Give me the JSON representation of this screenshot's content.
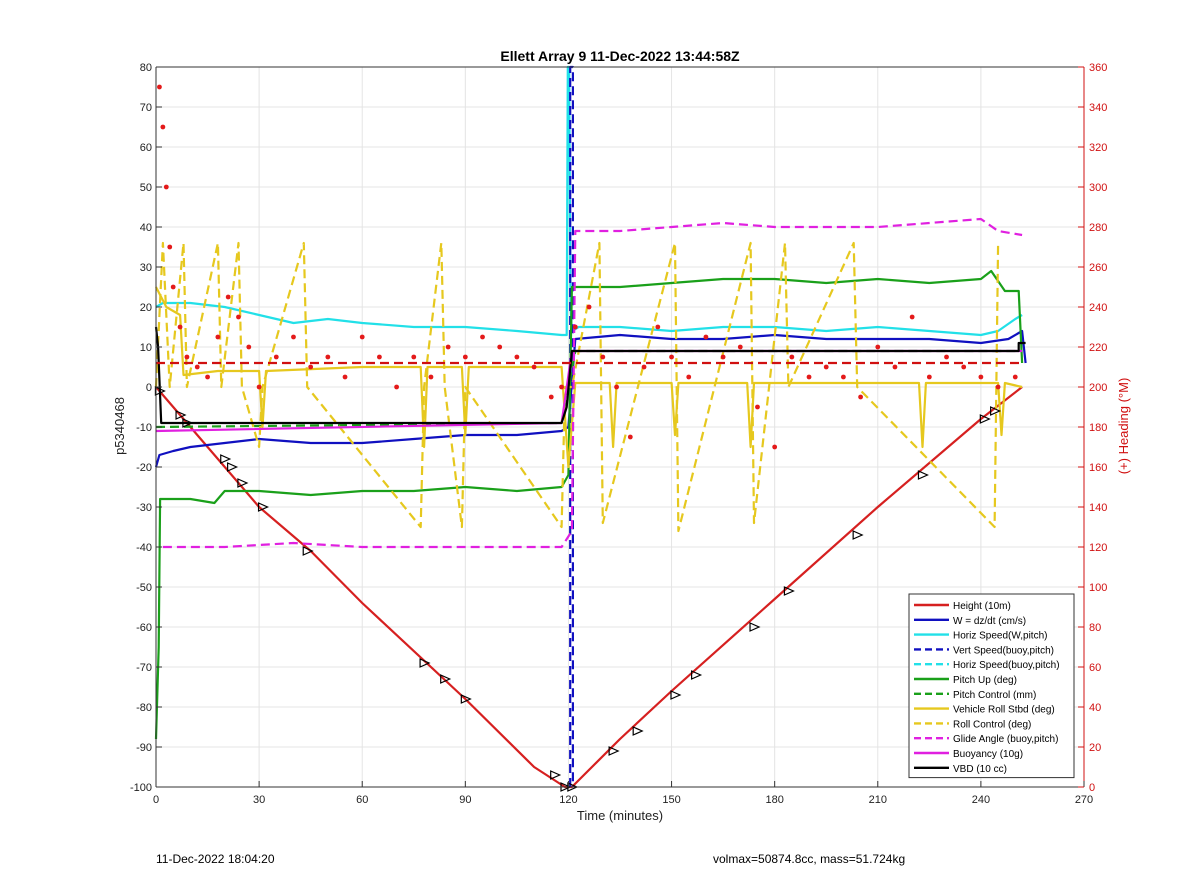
{
  "chart_data": {
    "type": "line",
    "title": "Ellett Array 9 11-Dec-2022 13:44:58Z",
    "xlabel": "Time (minutes)",
    "ylabel": "p5340468",
    "y2label": "(+) Heading (°M)",
    "xlim": [
      0,
      270
    ],
    "ylim": [
      -100,
      80
    ],
    "y2lim": [
      0,
      360
    ],
    "xticks": [
      0,
      30,
      60,
      90,
      120,
      150,
      180,
      210,
      240,
      270
    ],
    "yticks": [
      -100,
      -90,
      -80,
      -70,
      -60,
      -50,
      -40,
      -30,
      -20,
      -10,
      0,
      10,
      20,
      30,
      40,
      50,
      60,
      70,
      80
    ],
    "y2ticks": [
      0,
      20,
      40,
      60,
      80,
      100,
      120,
      140,
      160,
      180,
      200,
      220,
      240,
      260,
      280,
      300,
      320,
      340,
      360
    ],
    "grid": true,
    "legend_position": "bottom-right",
    "legend": [
      {
        "label": "Height (10m)",
        "color": "#d62020",
        "dash": false
      },
      {
        "label": "W = dz/dt (cm/s)",
        "color": "#1010c0",
        "dash": false
      },
      {
        "label": "Horiz Speed(W,pitch)",
        "color": "#22e0e8",
        "dash": false
      },
      {
        "label": "Vert Speed(buoy,pitch)",
        "color": "#1010c0",
        "dash": true
      },
      {
        "label": "Horiz Speed(buoy,pitch)",
        "color": "#22e0e8",
        "dash": true
      },
      {
        "label": "Pitch Up (deg)",
        "color": "#1aa01a",
        "dash": false
      },
      {
        "label": "Pitch Control (mm)",
        "color": "#1aa01a",
        "dash": true
      },
      {
        "label": "Vehicle Roll Stbd (deg)",
        "color": "#e6c81e",
        "dash": false
      },
      {
        "label": "Roll Control (deg)",
        "color": "#e6c81e",
        "dash": true
      },
      {
        "label": "Glide Angle (buoy,pitch)",
        "color": "#e020e0",
        "dash": true
      },
      {
        "label": "Buoyancy (10g)",
        "color": "#e020e0",
        "dash": false
      },
      {
        "label": "VBD (10 cc)",
        "color": "#000000",
        "dash": false
      }
    ],
    "series": [
      {
        "name": "Height (10m)",
        "color": "#d62020",
        "axis": "left",
        "dash": false,
        "x": [
          0,
          5,
          10,
          30,
          45,
          60,
          90,
          110,
          119,
          121,
          135,
          150,
          180,
          210,
          240,
          252
        ],
        "y": [
          0,
          -5,
          -10,
          -30,
          -41,
          -54,
          -78,
          -95,
          -100,
          -100,
          -88,
          -76,
          -53,
          -30,
          -8,
          0
        ]
      },
      {
        "name": "W = dz/dt (cm/s)",
        "color": "#1010c0",
        "axis": "left",
        "dash": false,
        "x": [
          0,
          1,
          5,
          10,
          20,
          30,
          45,
          60,
          75,
          90,
          105,
          118,
          120,
          122,
          135,
          150,
          165,
          180,
          195,
          210,
          225,
          240,
          248,
          252,
          253
        ],
        "y": [
          -20,
          -17,
          -16,
          -15,
          -14,
          -13,
          -14,
          -14,
          -13,
          -12,
          -12,
          -11,
          -10,
          12,
          13,
          12,
          12,
          13,
          12,
          12,
          12,
          11,
          12,
          14,
          6
        ]
      },
      {
        "name": "Horiz Speed(W,pitch)",
        "color": "#22e0e8",
        "axis": "left",
        "dash": false,
        "x": [
          0,
          2,
          10,
          20,
          30,
          40,
          50,
          60,
          75,
          90,
          105,
          118,
          119.5,
          119.8,
          120.2,
          120.6,
          121,
          123,
          135,
          150,
          165,
          180,
          195,
          210,
          225,
          240,
          245,
          250,
          252
        ],
        "y": [
          20,
          21,
          21,
          20,
          18,
          16,
          17,
          16,
          15,
          15,
          14,
          13,
          13,
          80,
          80,
          20,
          14,
          15,
          15,
          14,
          15,
          15,
          14,
          15,
          14,
          13,
          14,
          17,
          18
        ]
      },
      {
        "name": "Vert Speed(buoy,pitch)",
        "color": "#1010c0",
        "axis": "left",
        "dash": true,
        "x": [
          120.5,
          120.5,
          121.3,
          121.3
        ],
        "y": [
          -100,
          80,
          80,
          -100
        ]
      },
      {
        "name": "Pitch Up (deg)",
        "color": "#1aa01a",
        "axis": "left",
        "dash": false,
        "x": [
          0,
          0.8,
          1.2,
          2,
          10,
          17,
          20,
          30,
          45,
          60,
          75,
          90,
          105,
          118,
          120,
          121,
          123,
          135,
          150,
          165,
          180,
          195,
          210,
          225,
          240,
          243,
          247,
          251,
          252
        ],
        "y": [
          -88,
          -65,
          -28,
          -28,
          -28,
          -29,
          -26,
          -26,
          -27,
          -26,
          -26,
          -25,
          -26,
          -25,
          -22,
          25,
          25,
          25,
          26,
          27,
          27,
          26,
          27,
          26,
          27,
          29,
          24,
          24,
          6
        ]
      },
      {
        "name": "Pitch Control (mm)",
        "color": "#1aa01a",
        "axis": "left",
        "dash": true,
        "x": [
          0,
          118,
          122,
          252
        ],
        "y": [
          -10,
          -9,
          9,
          9
        ]
      },
      {
        "name": "Vehicle Roll Stbd (deg)",
        "color": "#e6c81e",
        "axis": "left",
        "dash": false,
        "x": [
          0,
          3,
          7,
          8,
          18,
          30,
          31,
          32,
          60,
          77,
          78,
          79,
          89,
          90,
          91,
          118,
          120,
          122,
          132,
          133,
          134,
          150,
          151,
          152,
          172,
          173,
          174,
          222,
          223,
          224,
          245,
          246,
          247,
          252
        ],
        "y": [
          25,
          20,
          18,
          3,
          4,
          4,
          -10,
          4,
          5,
          5,
          -15,
          5,
          5,
          -12,
          5,
          5,
          -20,
          1,
          1,
          -15,
          1,
          1,
          -12,
          1,
          1,
          -15,
          1,
          1,
          -15,
          1,
          1,
          -12,
          1,
          0
        ]
      },
      {
        "name": "Roll Control (deg)",
        "color": "#e6c81e",
        "axis": "left",
        "dash": true,
        "x": [
          0,
          2,
          4,
          8,
          9,
          18,
          19,
          24,
          25,
          30,
          31,
          43,
          44,
          77,
          78,
          83,
          84,
          89,
          90,
          118,
          119,
          121,
          129,
          130,
          151,
          152,
          173,
          174,
          183,
          184,
          203,
          204,
          244,
          245
        ],
        "y": [
          0,
          36,
          0,
          36,
          0,
          36,
          0,
          36,
          0,
          -15,
          0,
          36,
          0,
          -35,
          0,
          36,
          0,
          -35,
          0,
          -35,
          0,
          0,
          36,
          -34,
          36,
          -36,
          36,
          -34,
          36,
          0,
          36,
          0,
          -35,
          36
        ]
      },
      {
        "name": "Glide Angle (buoy,pitch)",
        "color": "#e020e0",
        "axis": "left",
        "dash": true,
        "x": [
          2,
          20,
          40,
          60,
          90,
          118,
          121,
          122,
          135,
          150,
          165,
          180,
          195,
          210,
          225,
          240,
          245,
          252
        ],
        "y": [
          -40,
          -40,
          -39,
          -40,
          -40,
          -40,
          -36,
          39,
          39,
          40,
          41,
          40,
          40,
          40,
          41,
          42,
          39,
          38
        ]
      },
      {
        "name": "Buoyancy (10g)",
        "color": "#e020e0",
        "axis": "left",
        "dash": false,
        "x": [
          0,
          118,
          121,
          252
        ],
        "y": [
          -11,
          -9,
          9,
          9
        ]
      },
      {
        "name": "VBD (10 cc)",
        "color": "#000000",
        "axis": "left",
        "dash": false,
        "x": [
          0,
          0.6,
          1.5,
          118,
          119.5,
          121,
          251,
          251,
          253
        ],
        "y": [
          15,
          10,
          -9,
          -9,
          -5,
          9,
          9,
          11,
          11
        ]
      },
      {
        "name": "Heading",
        "color": "#e41a1a",
        "axis": "right",
        "dash": false,
        "type": "scatter",
        "x": [
          1,
          2,
          3,
          4,
          5,
          7,
          9,
          12,
          15,
          18,
          21,
          24,
          27,
          30,
          35,
          40,
          45,
          50,
          55,
          60,
          65,
          70,
          75,
          80,
          85,
          90,
          95,
          100,
          105,
          110,
          115,
          118,
          122,
          126,
          130,
          134,
          138,
          142,
          146,
          150,
          155,
          160,
          165,
          170,
          175,
          180,
          185,
          190,
          195,
          200,
          205,
          210,
          215,
          220,
          225,
          230,
          235,
          240,
          245,
          250
        ],
        "y": [
          350,
          330,
          300,
          270,
          250,
          230,
          215,
          210,
          205,
          225,
          245,
          235,
          220,
          200,
          215,
          225,
          210,
          215,
          205,
          225,
          215,
          200,
          215,
          205,
          220,
          215,
          225,
          220,
          215,
          210,
          195,
          200,
          230,
          240,
          215,
          200,
          175,
          210,
          230,
          215,
          205,
          225,
          215,
          220,
          190,
          170,
          215,
          205,
          210,
          205,
          195,
          220,
          210,
          235,
          205,
          215,
          210,
          205,
          200,
          205
        ]
      },
      {
        "name": "Heading target",
        "color": "#d01010",
        "axis": "right",
        "dash": true,
        "x": [
          0,
          252
        ],
        "y": [
          212,
          212
        ]
      }
    ],
    "markers": {
      "x": [
        1,
        7,
        9,
        20,
        22,
        25,
        31,
        44,
        78,
        84,
        90,
        116,
        119,
        121,
        133,
        140,
        151,
        157,
        174,
        184,
        204,
        223,
        241,
        244
      ],
      "y": [
        -1,
        -7,
        -9,
        -18,
        -20,
        -24,
        -30,
        -41,
        -69,
        -73,
        -78,
        -97,
        -100,
        -100,
        -91,
        -86,
        -77,
        -72,
        -60,
        -51,
        -37,
        -22,
        -8,
        -6
      ]
    }
  },
  "footer": {
    "timestamp": "11-Dec-2022 18:04:20",
    "summary": "volmax=50874.8cc, mass=51.724kg"
  }
}
